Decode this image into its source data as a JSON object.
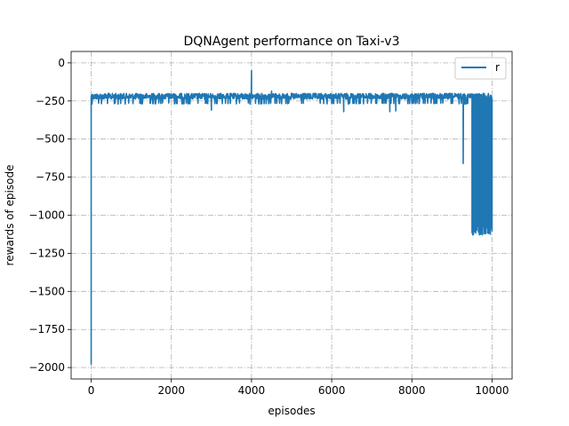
{
  "chart_data": {
    "type": "line",
    "title": "DQNAgent performance on Taxi-v3",
    "xlabel": "episodes",
    "ylabel": "rewards of episode",
    "xlim": [
      -500,
      10500
    ],
    "ylim": [
      -2075,
      75
    ],
    "xticks": [
      0,
      2000,
      4000,
      6000,
      8000,
      10000
    ],
    "yticks": [
      0,
      -250,
      -500,
      -750,
      -1000,
      -1250,
      -1500,
      -1750,
      -2000
    ],
    "grid": true,
    "legend": "top-right",
    "series": [
      {
        "name": "r",
        "color": "#1f77b4",
        "band": {
          "x_start": 0,
          "x_end": 10000,
          "typical_min": -270,
          "typical_max": -200
        },
        "key_points": [
          {
            "x": 0,
            "y": -1980
          },
          {
            "x": 20,
            "y": -210
          },
          {
            "x": 4000,
            "y": -50
          },
          {
            "x": 4500,
            "y": -185
          },
          {
            "x": 3000,
            "y": -310
          },
          {
            "x": 6300,
            "y": -320
          },
          {
            "x": 7450,
            "y": -320
          },
          {
            "x": 7600,
            "y": -315
          },
          {
            "x": 9280,
            "y": -660
          },
          {
            "x": 9550,
            "y": -1100
          },
          {
            "x": 9700,
            "y": -1110
          },
          {
            "x": 9800,
            "y": -700
          },
          {
            "x": 9850,
            "y": -1080
          },
          {
            "x": 9950,
            "y": -1120
          }
        ]
      }
    ]
  }
}
